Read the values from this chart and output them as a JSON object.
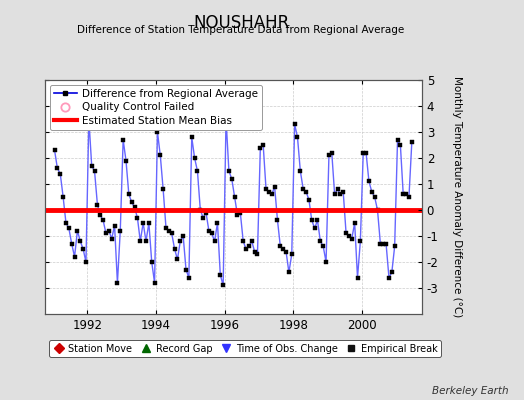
{
  "title": "NOUSHAHR",
  "subtitle": "Difference of Station Temperature Data from Regional Average",
  "ylabel": "Monthly Temperature Anomaly Difference (°C)",
  "bias": 0.0,
  "xlim_left": 1990.75,
  "xlim_right": 2001.75,
  "ylim": [
    -4,
    5
  ],
  "yticks": [
    -3,
    -2,
    -1,
    0,
    1,
    2,
    3,
    4,
    5
  ],
  "xticks": [
    1992,
    1994,
    1996,
    1998,
    2000
  ],
  "line_color": "#6666ff",
  "marker_color": "#000000",
  "bias_color": "#ff0000",
  "background_color": "#e0e0e0",
  "plot_bg_color": "#ffffff",
  "berkeley_earth_text": "Berkeley Earth",
  "time_series": [
    1991.042,
    2.3,
    1991.125,
    1.6,
    1991.208,
    1.4,
    1991.292,
    0.5,
    1991.375,
    -0.5,
    1991.458,
    -0.7,
    1991.542,
    -1.3,
    1991.625,
    -1.8,
    1991.708,
    -0.8,
    1991.792,
    -1.2,
    1991.875,
    -1.5,
    1991.958,
    -2.0,
    1992.042,
    3.5,
    1992.125,
    1.7,
    1992.208,
    1.5,
    1992.292,
    0.2,
    1992.375,
    -0.2,
    1992.458,
    -0.4,
    1992.542,
    -0.9,
    1992.625,
    -0.8,
    1992.708,
    -1.1,
    1992.792,
    -0.6,
    1992.875,
    -2.8,
    1992.958,
    -0.8,
    1993.042,
    2.7,
    1993.125,
    1.9,
    1993.208,
    0.6,
    1993.292,
    0.3,
    1993.375,
    0.1,
    1993.458,
    -0.3,
    1993.542,
    -1.2,
    1993.625,
    -0.5,
    1993.708,
    -1.2,
    1993.792,
    -0.5,
    1993.875,
    -2.0,
    1993.958,
    -2.8,
    1994.042,
    3.0,
    1994.125,
    2.1,
    1994.208,
    0.8,
    1994.292,
    -0.7,
    1994.375,
    -0.8,
    1994.458,
    -0.9,
    1994.542,
    -1.5,
    1994.625,
    -1.9,
    1994.708,
    -1.2,
    1994.792,
    -1.0,
    1994.875,
    -2.3,
    1994.958,
    -2.6,
    1995.042,
    2.8,
    1995.125,
    2.0,
    1995.208,
    1.5,
    1995.292,
    0.0,
    1995.375,
    -0.3,
    1995.458,
    -0.1,
    1995.542,
    -0.8,
    1995.625,
    -0.9,
    1995.708,
    -1.2,
    1995.792,
    -0.5,
    1995.875,
    -2.5,
    1995.958,
    -2.9,
    1996.042,
    3.5,
    1996.125,
    1.5,
    1996.208,
    1.2,
    1996.292,
    0.5,
    1996.375,
    -0.2,
    1996.458,
    -0.1,
    1996.542,
    -1.2,
    1996.625,
    -1.5,
    1996.708,
    -1.4,
    1996.792,
    -1.2,
    1996.875,
    -1.6,
    1996.958,
    -1.7,
    1997.042,
    2.4,
    1997.125,
    2.5,
    1997.208,
    0.8,
    1997.292,
    0.7,
    1997.375,
    0.6,
    1997.458,
    0.9,
    1997.542,
    -0.4,
    1997.625,
    -1.4,
    1997.708,
    -1.5,
    1997.792,
    -1.6,
    1997.875,
    -2.4,
    1997.958,
    -1.7,
    1998.042,
    3.3,
    1998.125,
    2.8,
    1998.208,
    1.5,
    1998.292,
    0.8,
    1998.375,
    0.7,
    1998.458,
    0.4,
    1998.542,
    -0.4,
    1998.625,
    -0.7,
    1998.708,
    -0.4,
    1998.792,
    -1.2,
    1998.875,
    -1.4,
    1998.958,
    -2.0,
    1999.042,
    2.1,
    1999.125,
    2.2,
    1999.208,
    0.6,
    1999.292,
    0.8,
    1999.375,
    0.6,
    1999.458,
    0.7,
    1999.542,
    -0.9,
    1999.625,
    -1.0,
    1999.708,
    -1.1,
    1999.792,
    -0.5,
    1999.875,
    -2.6,
    1999.958,
    -1.2,
    2000.042,
    2.2,
    2000.125,
    2.2,
    2000.208,
    1.1,
    2000.292,
    0.7,
    2000.375,
    0.5,
    2000.458,
    0.0,
    2000.542,
    -1.3,
    2000.625,
    -1.3,
    2000.708,
    -1.3,
    2000.792,
    -2.6,
    2000.875,
    -2.4,
    2000.958,
    -1.4,
    2001.042,
    2.7,
    2001.125,
    2.5,
    2001.208,
    0.6,
    2001.292,
    0.6,
    2001.375,
    0.5,
    2001.458,
    2.6
  ]
}
